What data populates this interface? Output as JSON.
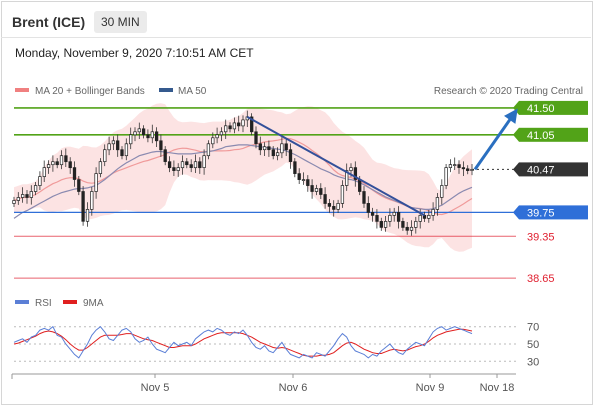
{
  "header": {
    "instrument": "Brent (ICE)",
    "timeframe": "30 MIN",
    "datetime": "Monday, November 9, 2020 7:10:51 AM CET"
  },
  "legend": {
    "main": [
      {
        "label": "MA 20 + Bollinger Bands",
        "color": "#f08080"
      },
      {
        "label": "MA 50",
        "color": "#355a8e"
      }
    ],
    "rsi": [
      {
        "label": "RSI",
        "color": "#5b7fd6"
      },
      {
        "label": "9MA",
        "color": "#e02020"
      }
    ],
    "credit": "Research © 2020 Trading Central"
  },
  "chart_data": {
    "type": "candlestick",
    "ylim": [
      38.45,
      41.7
    ],
    "levels": [
      {
        "value": "41.50",
        "style": "resistance",
        "color": "#52a318"
      },
      {
        "value": "41.05",
        "style": "resistance",
        "color": "#52a318"
      },
      {
        "value": "40.47",
        "style": "last",
        "color": "#333333"
      },
      {
        "value": "39.75",
        "style": "pivot",
        "color": "#2f6fd8"
      },
      {
        "value": "39.35",
        "style": "support",
        "color": "#e02030"
      },
      {
        "value": "38.65",
        "style": "support",
        "color": "#e02030"
      }
    ],
    "close": [
      39.95,
      40.0,
      40.05,
      40.0,
      40.1,
      40.2,
      40.35,
      40.5,
      40.55,
      40.6,
      40.55,
      40.7,
      40.6,
      40.5,
      40.3,
      40.1,
      39.6,
      39.8,
      40.1,
      40.4,
      40.6,
      40.8,
      40.9,
      40.95,
      40.8,
      40.7,
      40.9,
      41.05,
      41.1,
      41.15,
      41.05,
      41.0,
      41.1,
      40.95,
      40.8,
      40.6,
      40.5,
      40.45,
      40.5,
      40.6,
      40.55,
      40.5,
      40.6,
      40.5,
      40.7,
      40.9,
      41.0,
      41.05,
      41.1,
      41.2,
      41.15,
      41.25,
      41.2,
      41.3,
      41.35,
      41.1,
      40.9,
      40.8,
      40.85,
      40.8,
      40.7,
      40.75,
      40.9,
      40.8,
      40.6,
      40.4,
      40.3,
      40.3,
      40.2,
      40.1,
      40.15,
      40.05,
      39.9,
      39.85,
      39.8,
      39.9,
      40.2,
      40.45,
      40.5,
      40.3,
      40.1,
      39.9,
      39.75,
      39.7,
      39.6,
      39.5,
      39.6,
      39.7,
      39.75,
      39.6,
      39.5,
      39.45,
      39.5,
      39.6,
      39.7,
      39.65,
      39.7,
      39.8,
      40.0,
      40.2,
      40.5,
      40.55,
      40.55,
      40.5,
      40.48,
      40.45,
      40.47
    ],
    "ma50": [
      39.65,
      39.7,
      39.75,
      39.78,
      39.82,
      39.86,
      39.9,
      39.94,
      39.98,
      40.02,
      40.05,
      40.08,
      40.1,
      40.12,
      40.14,
      40.15,
      40.15,
      40.16,
      40.18,
      40.2,
      40.25,
      40.3,
      40.36,
      40.42,
      40.48,
      40.53,
      40.58,
      40.62,
      40.66,
      40.7,
      40.72,
      40.74,
      40.76,
      40.77,
      40.77,
      40.76,
      40.75,
      40.74,
      40.73,
      40.73,
      40.73,
      40.73,
      40.74,
      40.75,
      40.76,
      40.77,
      40.78,
      40.8,
      40.82,
      40.85,
      40.86,
      40.87,
      40.88,
      40.88,
      40.88,
      40.87,
      40.86,
      40.85,
      40.84,
      40.83,
      40.82,
      40.81,
      40.8,
      40.78,
      40.75,
      40.72,
      40.68,
      40.64,
      40.6,
      40.56,
      40.52,
      40.48,
      40.45,
      40.42,
      40.38,
      40.35,
      40.33,
      40.31,
      40.3,
      40.28,
      40.25,
      40.21,
      40.17,
      40.13,
      40.09,
      40.05,
      40.01,
      39.98,
      39.95,
      39.92,
      39.89,
      39.86,
      39.83,
      39.82,
      39.81,
      39.8,
      39.8,
      39.81,
      39.84,
      39.87,
      39.92,
      39.97,
      40.02,
      40.07,
      40.11,
      40.14,
      40.17
    ],
    "rsi": [
      52,
      54,
      56,
      52,
      58,
      60,
      66,
      68,
      66,
      70,
      60,
      58,
      50,
      44,
      38,
      34,
      42,
      50,
      60,
      66,
      70,
      64,
      56,
      54,
      60,
      66,
      68,
      64,
      56,
      52,
      54,
      58,
      50,
      44,
      42,
      40,
      46,
      52,
      48,
      50,
      52,
      48,
      56,
      60,
      64,
      66,
      64,
      68,
      66,
      62,
      60,
      64,
      62,
      66,
      60,
      52,
      46,
      44,
      48,
      42,
      40,
      46,
      52,
      44,
      38,
      36,
      34,
      38,
      36,
      34,
      40,
      38,
      36,
      42,
      48,
      56,
      62,
      58,
      48,
      42,
      40,
      38,
      34,
      38,
      36,
      42,
      46,
      50,
      44,
      40,
      38,
      44,
      48,
      52,
      50,
      48,
      56,
      64,
      68,
      70,
      66,
      68,
      70,
      68,
      66,
      64,
      62
    ],
    "rsi_ma9": [
      50,
      51,
      53,
      55,
      57,
      59,
      62,
      64,
      65,
      64,
      62,
      59,
      55,
      50,
      46,
      43,
      43,
      46,
      50,
      54,
      58,
      60,
      60,
      60,
      60,
      61,
      62,
      62,
      60,
      58,
      56,
      55,
      54,
      52,
      50,
      48,
      46,
      46,
      47,
      48,
      48,
      48,
      50,
      53,
      56,
      58,
      60,
      62,
      63,
      63,
      63,
      63,
      63,
      62,
      60,
      58,
      55,
      52,
      50,
      48,
      46,
      45,
      46,
      45,
      43,
      41,
      39,
      37,
      36,
      36,
      36,
      37,
      37,
      38,
      40,
      44,
      48,
      51,
      52,
      50,
      47,
      44,
      42,
      40,
      39,
      39,
      41,
      43,
      44,
      43,
      42,
      43,
      45,
      47,
      48,
      50,
      53,
      57,
      60,
      62,
      64,
      65,
      66,
      67,
      67,
      66,
      65
    ],
    "rsi_levels": [
      "70",
      "50",
      "30"
    ],
    "x_labels": [
      "Nov 5",
      "Nov 6",
      "Nov 9",
      "Nov 18"
    ]
  }
}
